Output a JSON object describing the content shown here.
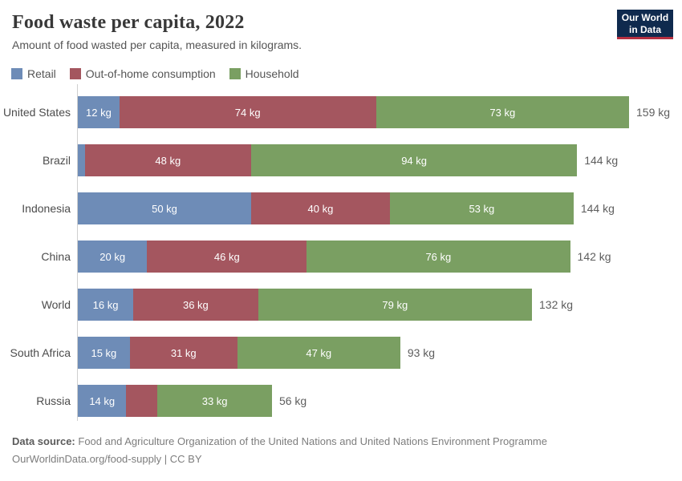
{
  "header": {
    "title": "Food waste per capita, 2022",
    "subtitle": "Amount of food wasted per capita, measured in kilograms.",
    "logo": {
      "line1": "Our World",
      "line2": "in Data"
    }
  },
  "legend": {
    "items": [
      {
        "label": "Retail",
        "color": "#6e8cb7"
      },
      {
        "label": "Out-of-home consumption",
        "color": "#a4565f"
      },
      {
        "label": "Household",
        "color": "#7a9f62"
      }
    ]
  },
  "chart_data": {
    "type": "bar",
    "variant": "horizontal-stacked",
    "unit": "kg",
    "xlim": [
      0,
      159
    ],
    "grid": false,
    "legend_position": "top-left",
    "series_names": [
      "Retail",
      "Out-of-home consumption",
      "Household"
    ],
    "series_colors": [
      "#6e8cb7",
      "#a4565f",
      "#7a9f62"
    ],
    "rows": [
      {
        "entity": "United States",
        "segments": [
          {
            "series": "Retail",
            "value": 12,
            "label": "12 kg"
          },
          {
            "series": "Out-of-home consumption",
            "value": 74,
            "label": "74 kg"
          },
          {
            "series": "Household",
            "value": 73,
            "label": "73 kg"
          }
        ],
        "total": 159,
        "total_label": "159 kg"
      },
      {
        "entity": "Brazil",
        "segments": [
          {
            "series": "Retail",
            "value": 2,
            "label": ""
          },
          {
            "series": "Out-of-home consumption",
            "value": 48,
            "label": "48 kg"
          },
          {
            "series": "Household",
            "value": 94,
            "label": "94 kg"
          }
        ],
        "total": 144,
        "total_label": "144 kg"
      },
      {
        "entity": "Indonesia",
        "segments": [
          {
            "series": "Retail",
            "value": 50,
            "label": "50 kg"
          },
          {
            "series": "Out-of-home consumption",
            "value": 40,
            "label": "40 kg"
          },
          {
            "series": "Household",
            "value": 53,
            "label": "53 kg"
          }
        ],
        "total": 144,
        "total_label": "144 kg"
      },
      {
        "entity": "China",
        "segments": [
          {
            "series": "Retail",
            "value": 20,
            "label": "20 kg"
          },
          {
            "series": "Out-of-home consumption",
            "value": 46,
            "label": "46 kg"
          },
          {
            "series": "Household",
            "value": 76,
            "label": "76 kg"
          }
        ],
        "total": 142,
        "total_label": "142 kg"
      },
      {
        "entity": "World",
        "segments": [
          {
            "series": "Retail",
            "value": 16,
            "label": "16 kg"
          },
          {
            "series": "Out-of-home consumption",
            "value": 36,
            "label": "36 kg"
          },
          {
            "series": "Household",
            "value": 79,
            "label": "79 kg"
          }
        ],
        "total": 132,
        "total_label": "132 kg"
      },
      {
        "entity": "South Africa",
        "segments": [
          {
            "series": "Retail",
            "value": 15,
            "label": "15 kg"
          },
          {
            "series": "Out-of-home consumption",
            "value": 31,
            "label": "31 kg"
          },
          {
            "series": "Household",
            "value": 47,
            "label": "47 kg"
          }
        ],
        "total": 93,
        "total_label": "93 kg"
      },
      {
        "entity": "Russia",
        "segments": [
          {
            "series": "Retail",
            "value": 14,
            "label": "14 kg"
          },
          {
            "series": "Out-of-home consumption",
            "value": 9,
            "label": ""
          },
          {
            "series": "Household",
            "value": 33,
            "label": "33 kg"
          }
        ],
        "total": 56,
        "total_label": "56 kg"
      }
    ]
  },
  "footer": {
    "source_label": "Data source:",
    "source_text": "Food and Agriculture Organization of the United Nations and United Nations Environment Programme",
    "license_text": "OurWorldinData.org/food-supply | CC BY"
  }
}
